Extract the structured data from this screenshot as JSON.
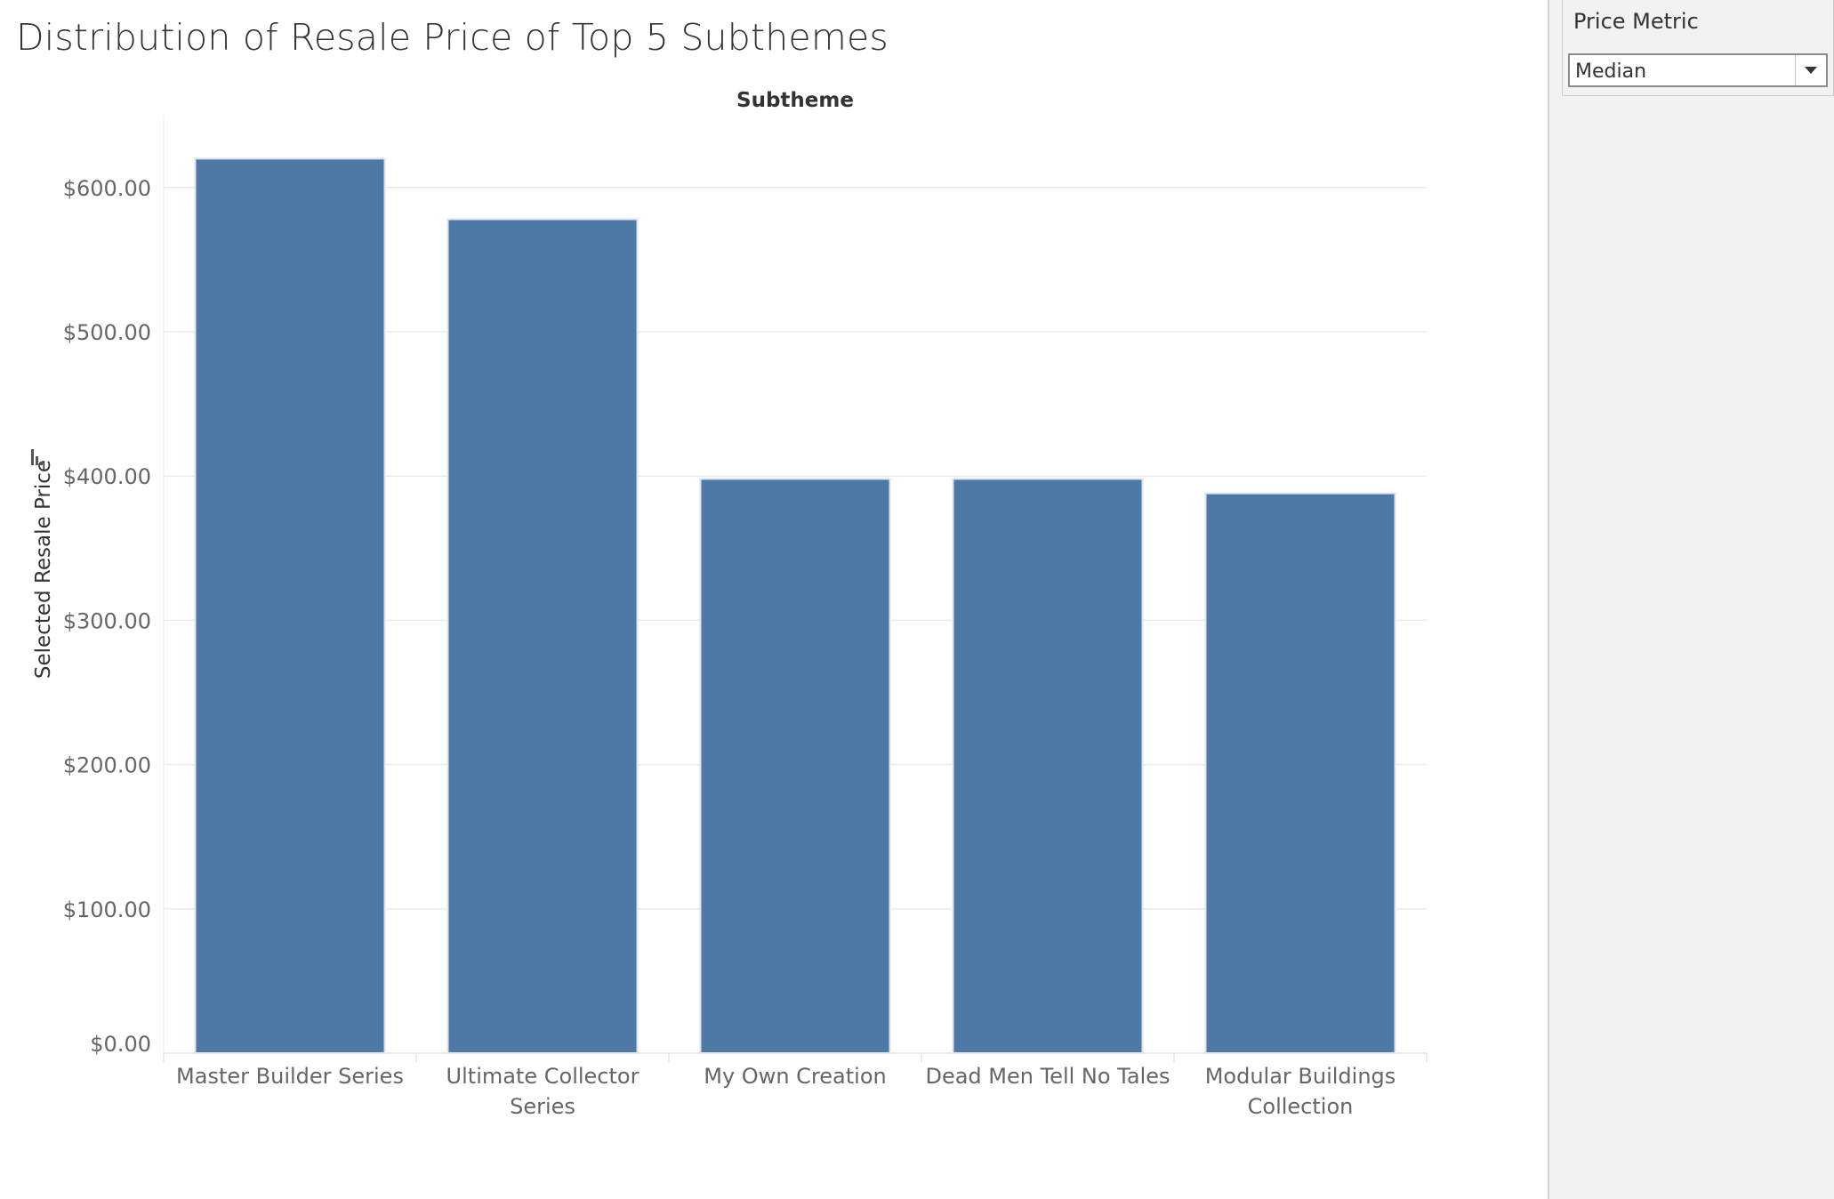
{
  "title": "Distribution of Resale Price of Top 5 Subthemes",
  "filter": {
    "title": "Price Metric",
    "selected": "Median",
    "icon": "chevron-down-icon"
  },
  "sort_icon": "sort-icon",
  "colors": {
    "bar": "#4e79a7",
    "bar_stroke": "#dde3ea",
    "grid": "#ebebeb",
    "axis_text": "#666666",
    "axis_title": "#333333",
    "panel_bg": "#f2f2f2"
  },
  "chart_data": {
    "type": "bar",
    "title": "Distribution of Resale Price of Top 5 Subthemes",
    "xlabel": "Subtheme",
    "ylabel": "Selected Resale Price",
    "categories": [
      [
        "Master Builder Series"
      ],
      [
        "Ultimate Collector",
        "Series"
      ],
      [
        "My Own Creation"
      ],
      [
        "Dead Men Tell No Tales"
      ],
      [
        "Modular Buildings",
        "Collection"
      ]
    ],
    "values": [
      620,
      578,
      398,
      398,
      388
    ],
    "ylim": [
      0,
      650
    ],
    "yticks": [
      0,
      100,
      200,
      300,
      400,
      500,
      600
    ],
    "ytick_labels": [
      "$0.00",
      "$100.00",
      "$200.00",
      "$300.00",
      "$400.00",
      "$500.00",
      "$600.00"
    ],
    "grid": true,
    "legend": "none"
  }
}
